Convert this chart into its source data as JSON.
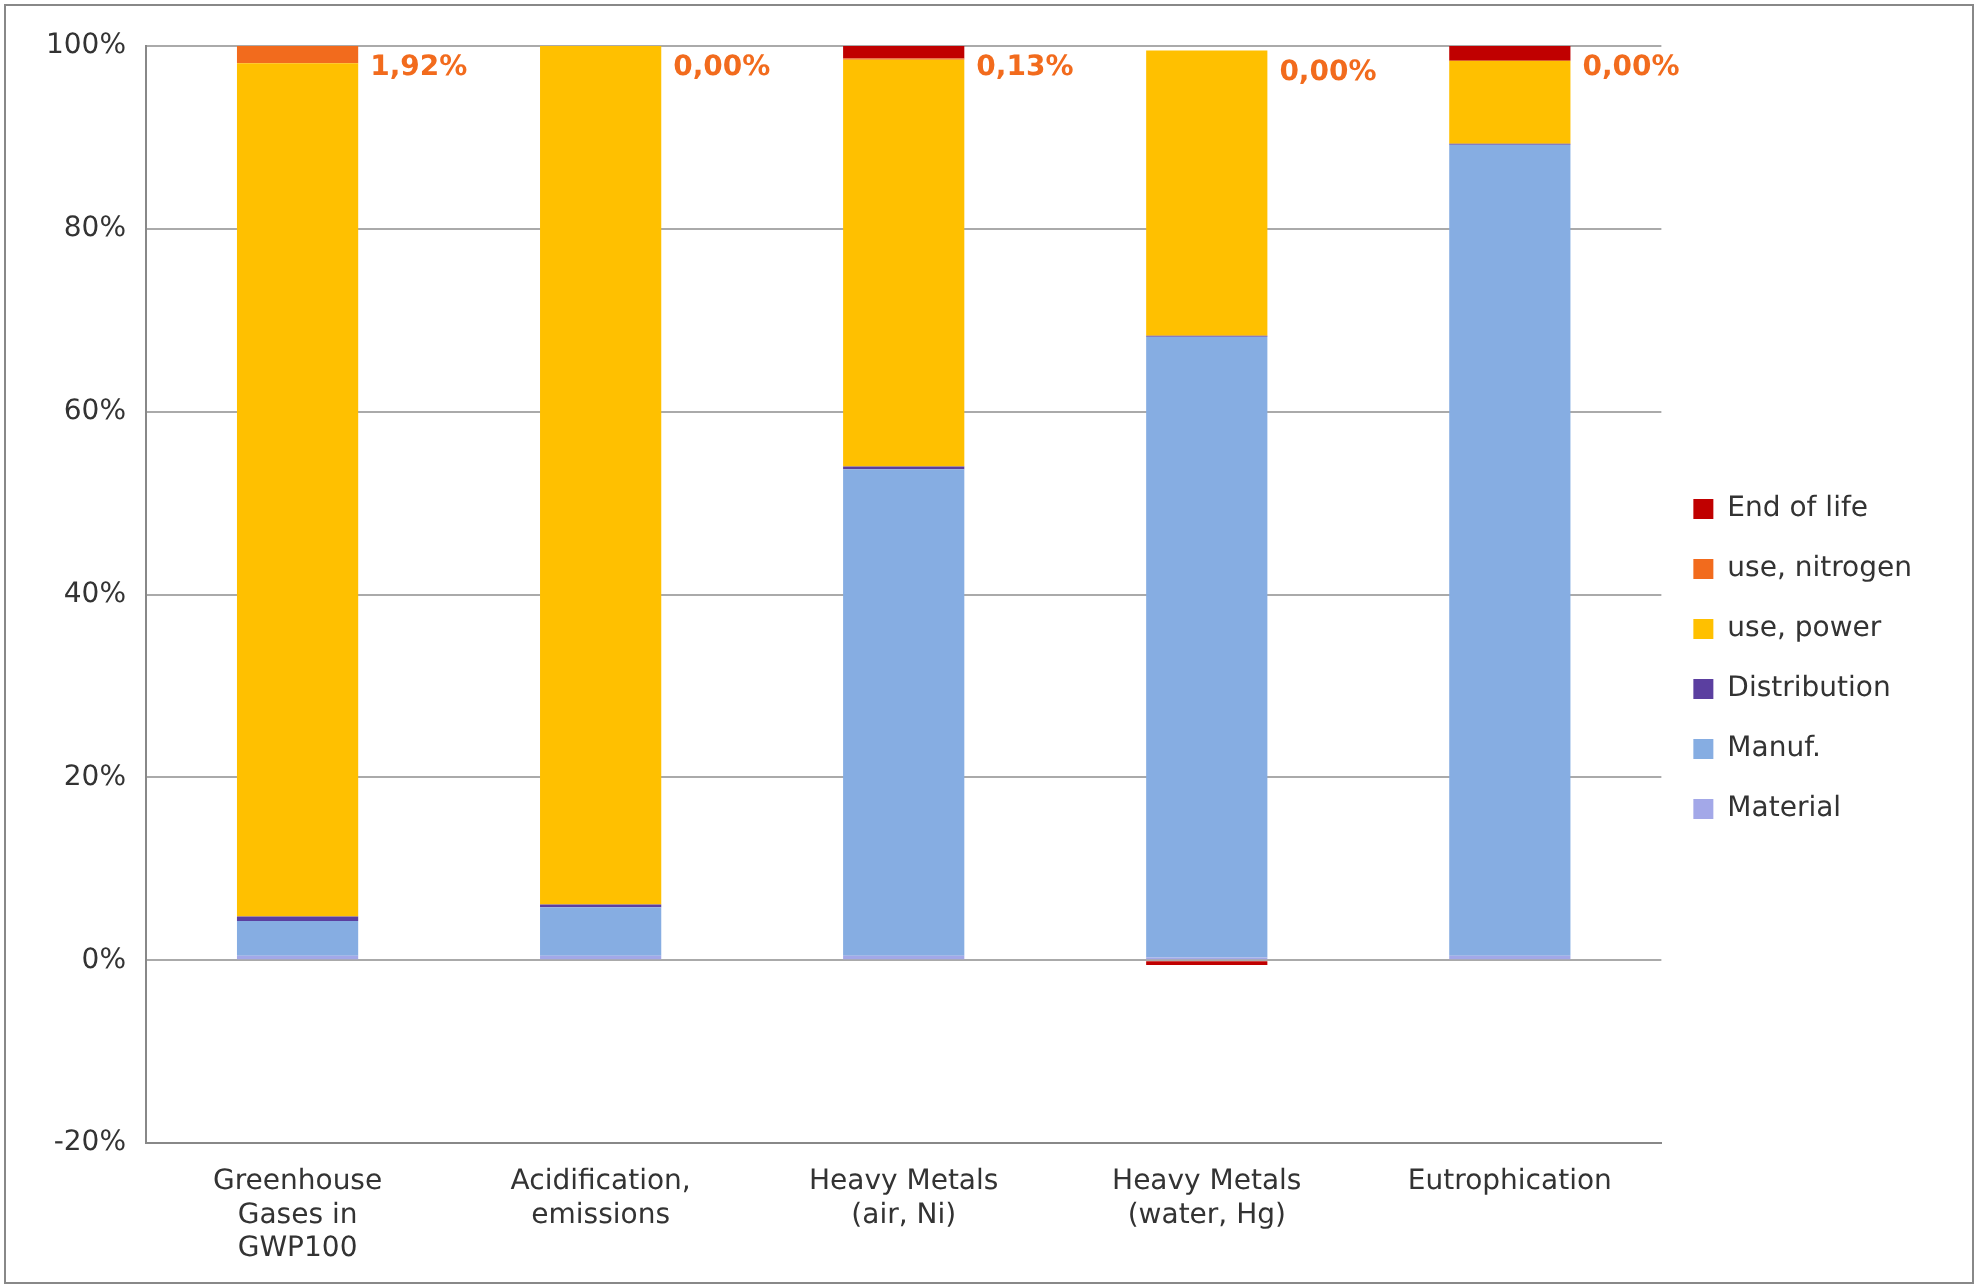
{
  "chart_data": {
    "type": "bar",
    "stacked": true,
    "categories": [
      "Greenhouse Gases in GWP100",
      "Acidification, emissions",
      "Heavy Metals (air, Ni)",
      "Heavy Metals (water, Hg)",
      "Eutrophication"
    ],
    "series": [
      {
        "name": "Material",
        "color": "#a3a8e8",
        "values": [
          0.5,
          0.5,
          0.5,
          0.3,
          0.5
        ]
      },
      {
        "name": "Manuf.",
        "color": "#86ade2",
        "values": [
          3.8,
          5.3,
          53.2,
          67.9,
          88.7
        ]
      },
      {
        "name": "Distribution",
        "color": "#5b3fa0",
        "values": [
          0.5,
          0.3,
          0.3,
          0.1,
          0.1
        ]
      },
      {
        "name": "use, power",
        "color": "#ffc000",
        "values": [
          93.3,
          93.9,
          44.5,
          31.2,
          9.1
        ]
      },
      {
        "name": "use, nitrogen",
        "color": "#f26b1d",
        "values": [
          1.92,
          0,
          0.13,
          0,
          0
        ]
      },
      {
        "name": "End of life",
        "color": "#c00000",
        "values": [
          0,
          0,
          1.4,
          -0.5,
          1.6
        ]
      }
    ],
    "ylim": [
      -20,
      100
    ],
    "yticks": [
      {
        "value": -20,
        "label": "-20%"
      },
      {
        "value": 0,
        "label": "0%"
      },
      {
        "value": 20,
        "label": "20%"
      },
      {
        "value": 40,
        "label": "40%"
      },
      {
        "value": 60,
        "label": "60%"
      },
      {
        "value": 80,
        "label": "80%"
      },
      {
        "value": 100,
        "label": "100%"
      }
    ],
    "annotations": [
      {
        "text": "1,92%",
        "x": "Greenhouse Gases in GWP100",
        "y": 100
      },
      {
        "text": "0,00%",
        "x": "Acidification, emissions",
        "y": 100
      },
      {
        "text": "0,13%",
        "x": "Heavy Metals (air, Ni)",
        "y": 100
      },
      {
        "text": "0,00%",
        "x": "Heavy Metals (water, Hg)",
        "y": 99.5
      },
      {
        "text": "0,00%",
        "x": "Eutrophication",
        "y": 100
      }
    ],
    "grid": "y",
    "legend": "right"
  }
}
